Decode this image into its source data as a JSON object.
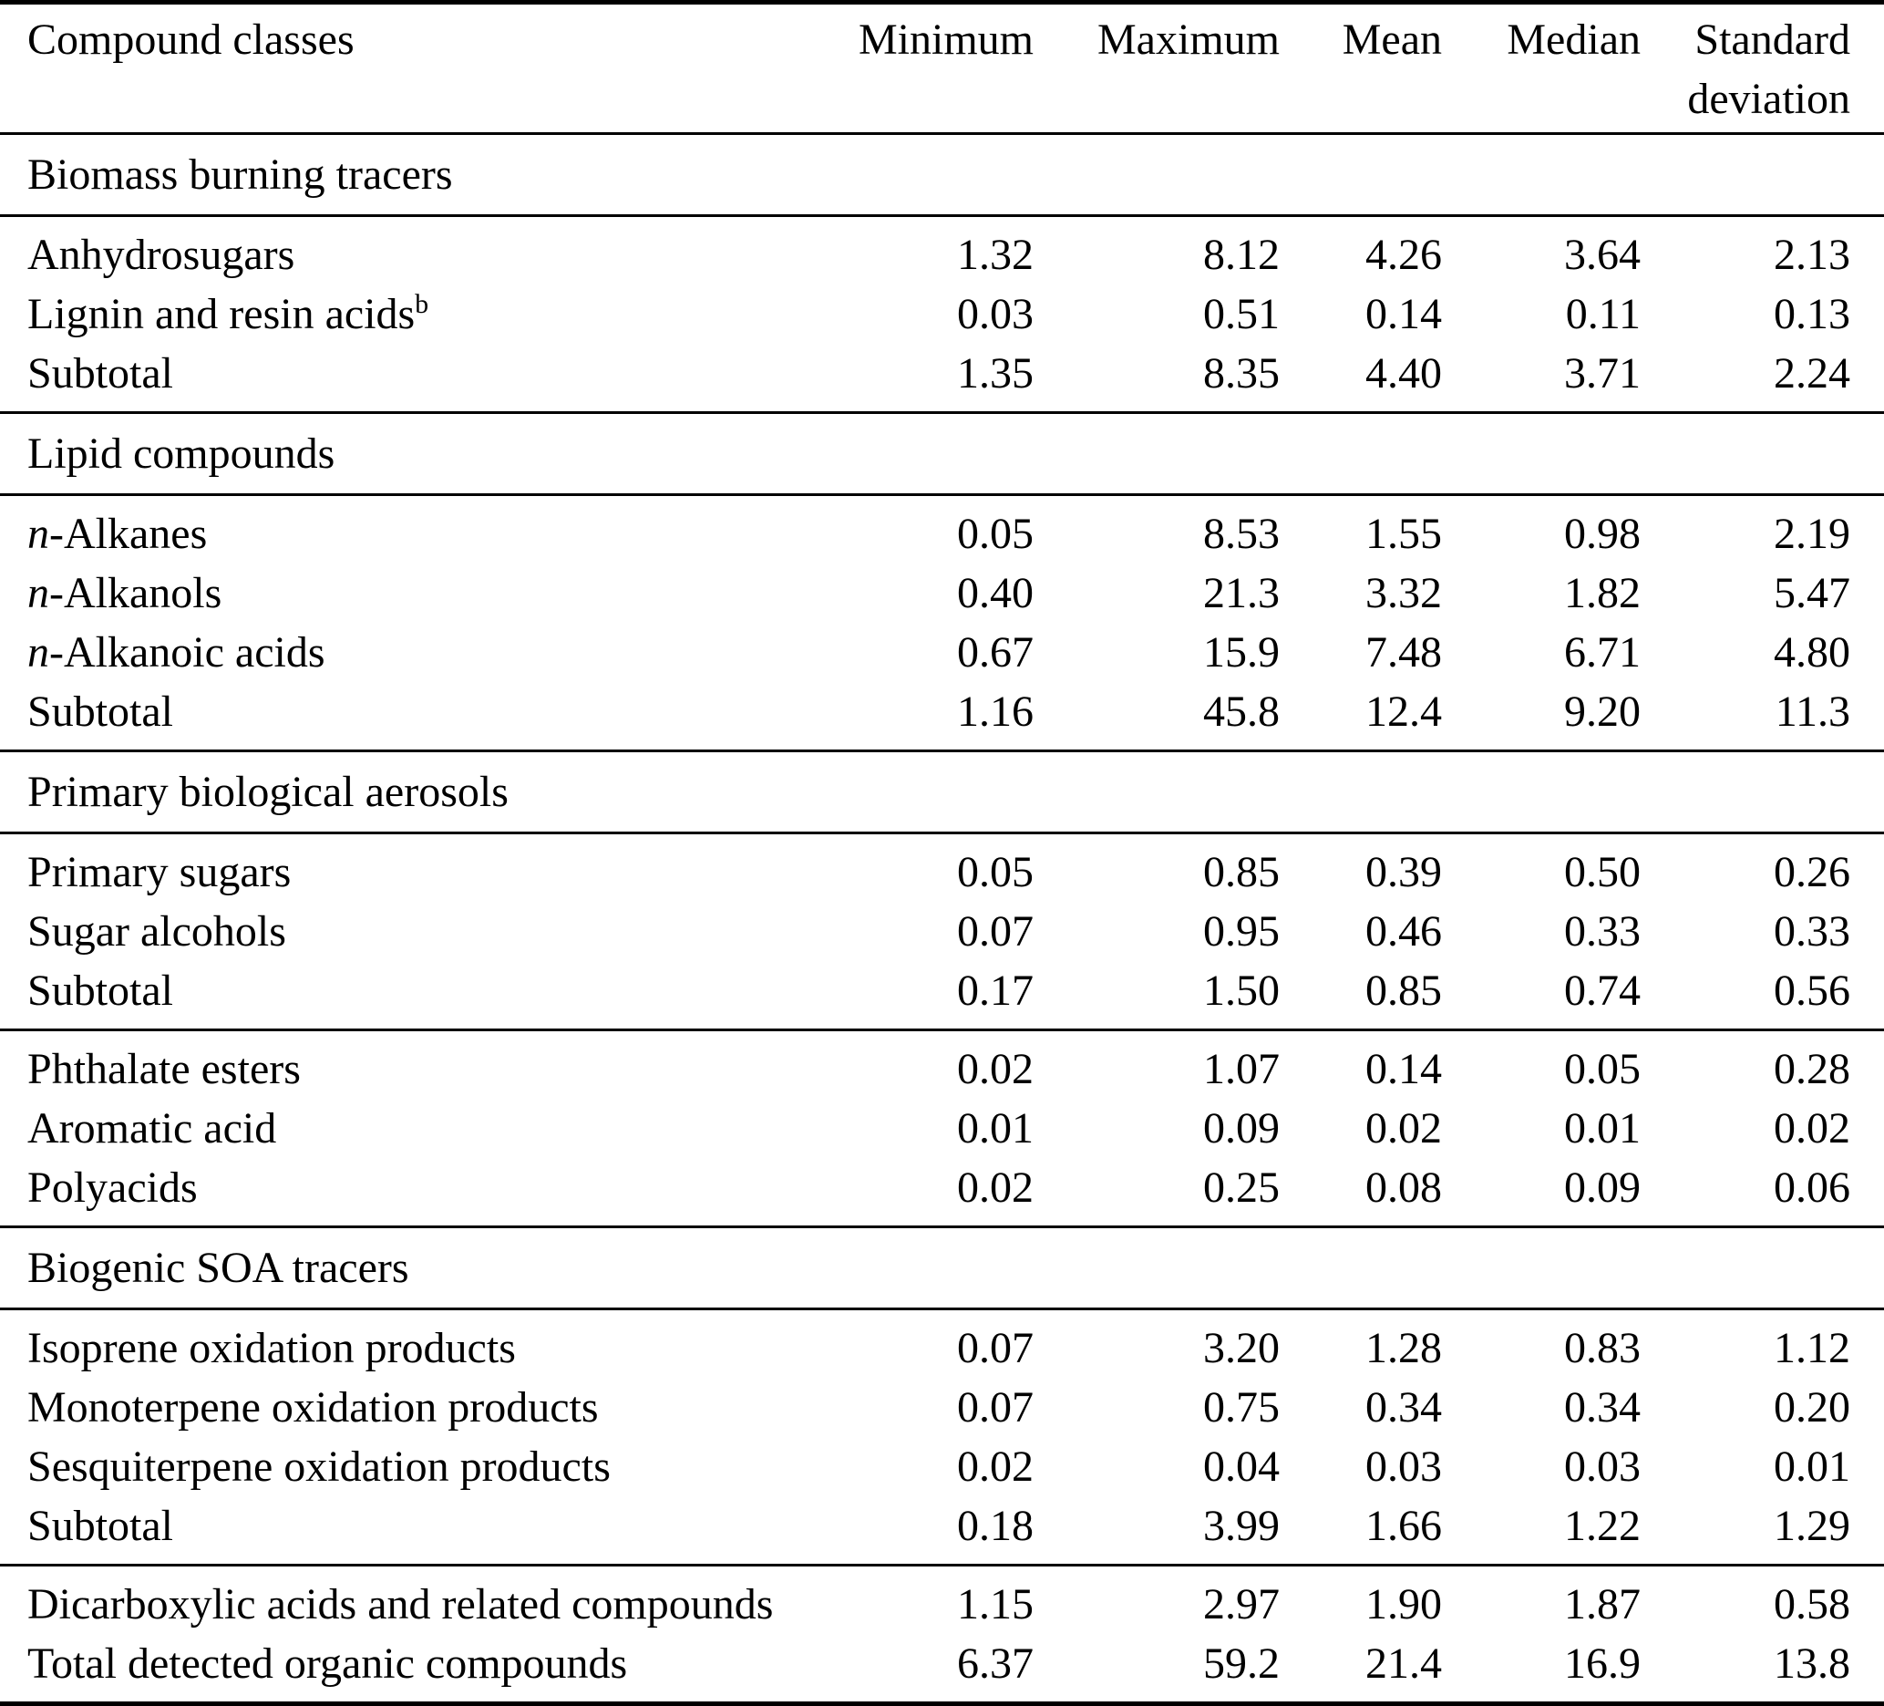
{
  "colors": {
    "text": "#000000",
    "background": "#ffffff",
    "rule": "#000000"
  },
  "table": {
    "header": {
      "compound_classes": "Compound classes",
      "columns": [
        "Minimum",
        "Maximum",
        "Mean",
        "Median",
        "Standard deviation"
      ]
    },
    "groups": [
      {
        "title": "Biomass burning tracers",
        "rows": [
          {
            "label": "Anhydrosugars",
            "values": [
              "1.32",
              "8.12",
              "4.26",
              "3.64",
              "2.13"
            ]
          },
          {
            "label": "Lignin and resin acids",
            "sup": "b",
            "values": [
              "0.03",
              "0.51",
              "0.14",
              "0.11",
              "0.13"
            ]
          },
          {
            "label": "Subtotal",
            "values": [
              "1.35",
              "8.35",
              "4.40",
              "3.71",
              "2.24"
            ]
          }
        ]
      },
      {
        "title": "Lipid compounds",
        "rows": [
          {
            "label": "-Alkanes",
            "italic_prefix": "n",
            "values": [
              "0.05",
              "8.53",
              "1.55",
              "0.98",
              "2.19"
            ]
          },
          {
            "label": "-Alkanols",
            "italic_prefix": "n",
            "values": [
              "0.40",
              "21.3",
              "3.32",
              "1.82",
              "5.47"
            ]
          },
          {
            "label": "-Alkanoic acids",
            "italic_prefix": "n",
            "values": [
              "0.67",
              "15.9",
              "7.48",
              "6.71",
              "4.80"
            ]
          },
          {
            "label": "Subtotal",
            "values": [
              "1.16",
              "45.8",
              "12.4",
              "9.20",
              "11.3"
            ]
          }
        ]
      },
      {
        "title": "Primary biological aerosols",
        "rows": [
          {
            "label": "Primary sugars",
            "values": [
              "0.05",
              "0.85",
              "0.39",
              "0.50",
              "0.26"
            ]
          },
          {
            "label": "Sugar alcohols",
            "values": [
              "0.07",
              "0.95",
              "0.46",
              "0.33",
              "0.33"
            ]
          },
          {
            "label": "Subtotal",
            "values": [
              "0.17",
              "1.50",
              "0.85",
              "0.74",
              "0.56"
            ]
          }
        ]
      },
      {
        "title": null,
        "rows": [
          {
            "label": "Phthalate esters",
            "values": [
              "0.02",
              "1.07",
              "0.14",
              "0.05",
              "0.28"
            ]
          },
          {
            "label": "Aromatic acid",
            "values": [
              "0.01",
              "0.09",
              "0.02",
              "0.01",
              "0.02"
            ]
          },
          {
            "label": "Polyacids",
            "values": [
              "0.02",
              "0.25",
              "0.08",
              "0.09",
              "0.06"
            ]
          }
        ]
      },
      {
        "title": "Biogenic SOA tracers",
        "rows": [
          {
            "label": "Isoprene oxidation products",
            "values": [
              "0.07",
              "3.20",
              "1.28",
              "0.83",
              "1.12"
            ]
          },
          {
            "label": "Monoterpene oxidation products",
            "values": [
              "0.07",
              "0.75",
              "0.34",
              "0.34",
              "0.20"
            ]
          },
          {
            "label": "Sesquiterpene oxidation products",
            "values": [
              "0.02",
              "0.04",
              "0.03",
              "0.03",
              "0.01"
            ]
          },
          {
            "label": "Subtotal",
            "values": [
              "0.18",
              "3.99",
              "1.66",
              "1.22",
              "1.29"
            ]
          }
        ]
      },
      {
        "title": null,
        "rows": [
          {
            "label": "Dicarboxylic acids and related compounds",
            "values": [
              "1.15",
              "2.97",
              "1.90",
              "1.87",
              "0.58"
            ]
          },
          {
            "label": "Total detected organic compounds",
            "values": [
              "6.37",
              "59.2",
              "21.4",
              "16.9",
              "13.8"
            ]
          }
        ]
      }
    ]
  }
}
